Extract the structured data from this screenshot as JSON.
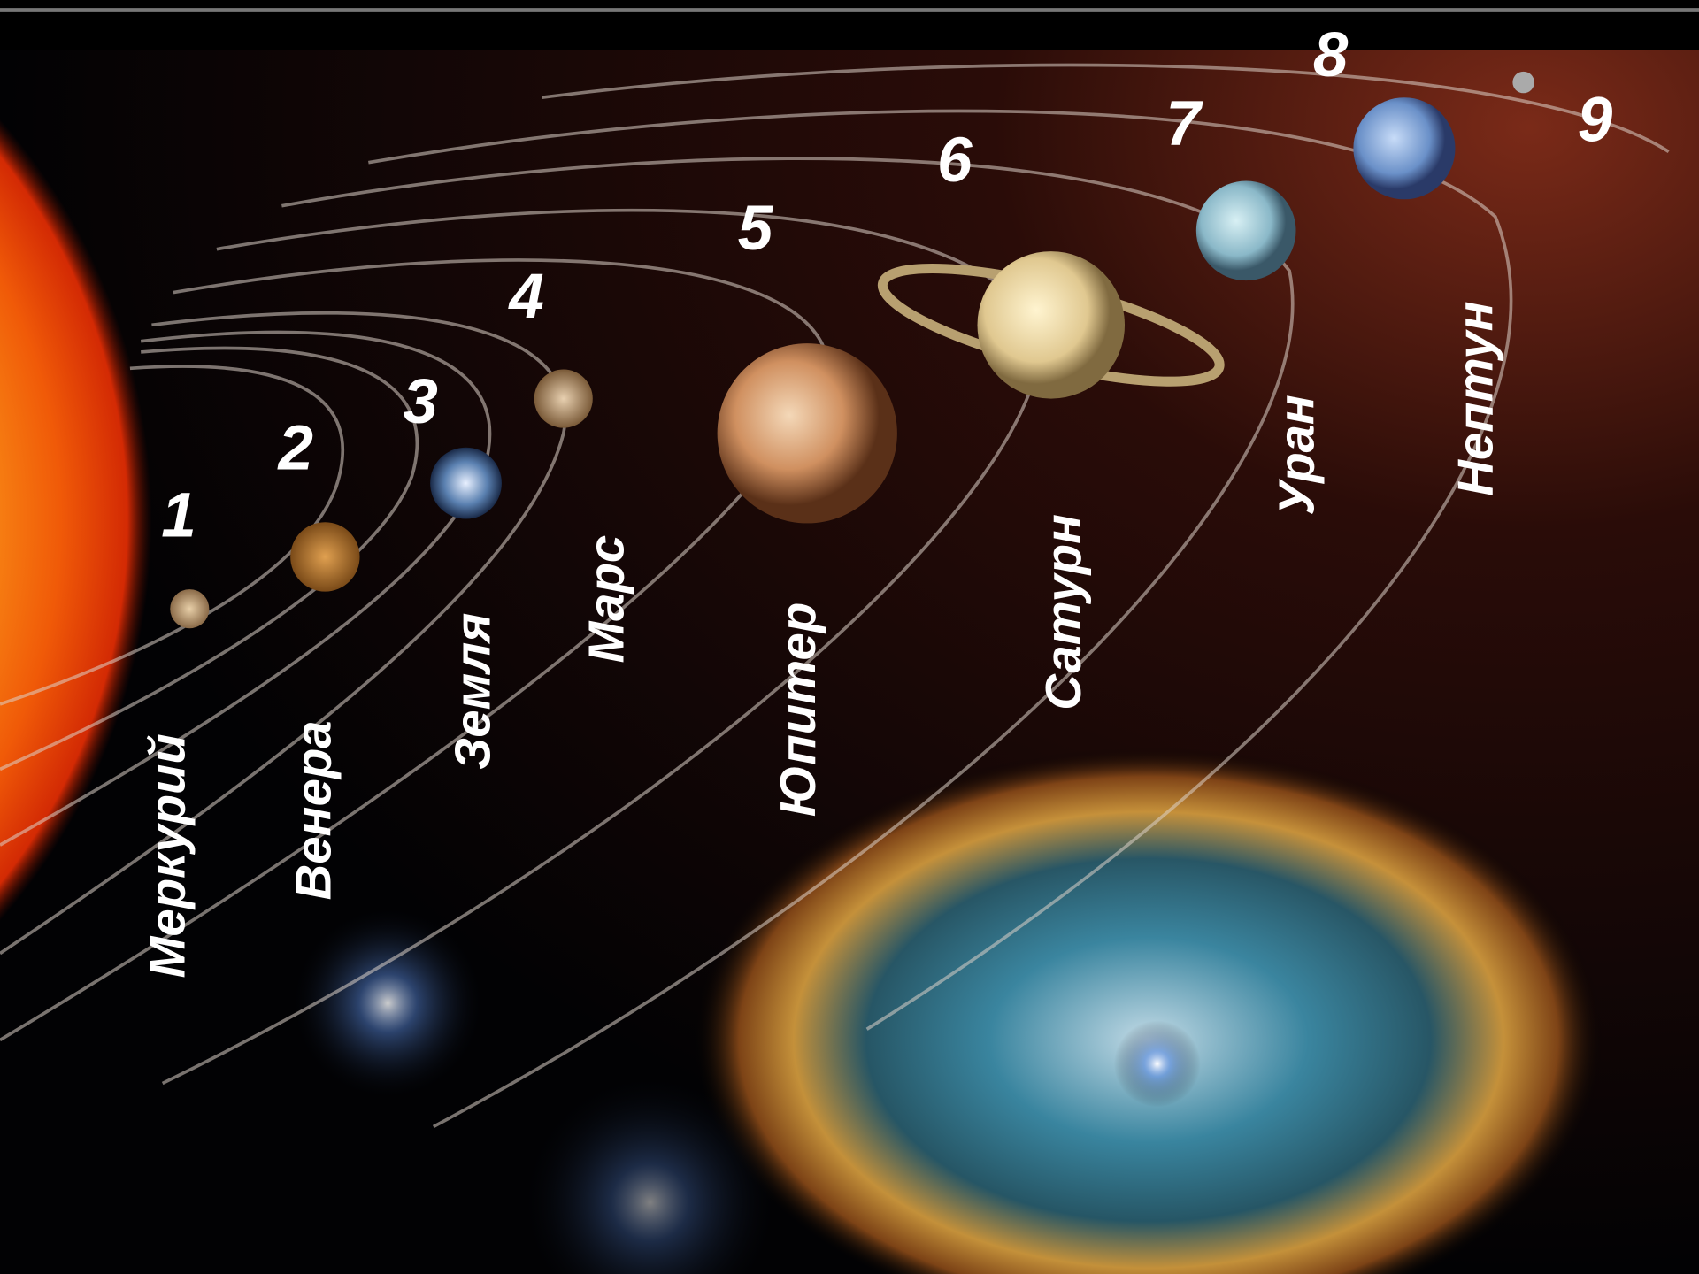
{
  "planets": [
    {
      "number": "1",
      "name": "Меркурий"
    },
    {
      "number": "2",
      "name": "Венера"
    },
    {
      "number": "3",
      "name": "Земля"
    },
    {
      "number": "4",
      "name": "Марс"
    },
    {
      "number": "5",
      "name": "Юпитер"
    },
    {
      "number": "6",
      "name": "Сатурн"
    },
    {
      "number": "7",
      "name": "Уран"
    },
    {
      "number": "8",
      "name": "Нептун"
    },
    {
      "number": "9"
    }
  ]
}
